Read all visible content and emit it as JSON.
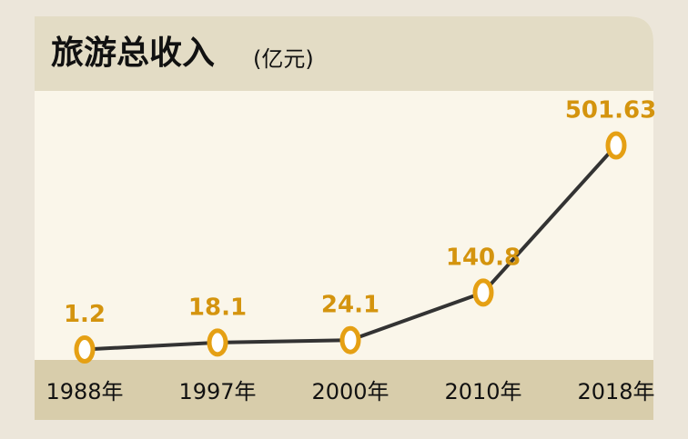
{
  "chart_data": {
    "type": "line",
    "title": "旅游总收入",
    "unit": "(亿元)",
    "categories": [
      "1988年",
      "1997年",
      "2000年",
      "2010年",
      "2018年"
    ],
    "values": [
      1.2,
      18.1,
      24.1,
      140.8,
      501.63
    ],
    "color": "#333333",
    "marker_color": "#e5a014",
    "label_color": "#d4940e"
  }
}
